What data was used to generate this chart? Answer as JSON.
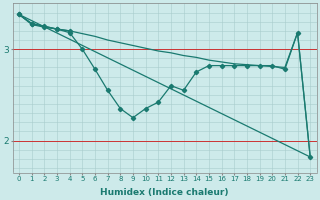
{
  "bg_color": "#cdeaea",
  "line_color": "#1a7a70",
  "red_line_color": "#cc3333",
  "xlabel": "Humidex (Indice chaleur)",
  "xmin": -0.5,
  "xmax": 23.5,
  "ymin": 1.65,
  "ymax": 3.5,
  "red_hlines": [
    2.0,
    3.0
  ],
  "series": [
    {
      "x": [
        0,
        23
      ],
      "y": [
        3.38,
        1.82
      ],
      "has_markers": false
    },
    {
      "x": [
        0,
        1,
        2,
        3,
        4,
        5,
        6,
        7,
        8,
        9,
        10,
        11,
        12,
        13,
        14,
        15,
        16,
        17,
        18,
        19,
        20,
        21,
        22,
        23
      ],
      "y": [
        3.38,
        3.28,
        3.25,
        3.22,
        3.2,
        3.17,
        3.14,
        3.1,
        3.07,
        3.04,
        3.01,
        2.98,
        2.96,
        2.93,
        2.91,
        2.88,
        2.86,
        2.84,
        2.83,
        2.82,
        2.81,
        2.8,
        3.18,
        1.82
      ],
      "has_markers": false
    },
    {
      "x": [
        0,
        1,
        2,
        3,
        4,
        5,
        6,
        7,
        8,
        9,
        10,
        11,
        12,
        13,
        14,
        15,
        16,
        17,
        18,
        19,
        20,
        21,
        22,
        23
      ],
      "y": [
        3.38,
        3.27,
        3.24,
        3.22,
        3.18,
        3.0,
        2.78,
        2.55,
        2.35,
        2.25,
        2.35,
        2.42,
        2.6,
        2.55,
        2.75,
        2.82,
        2.82,
        2.82,
        2.82,
        2.82,
        2.82,
        2.78,
        3.18,
        1.82
      ],
      "has_markers": true
    },
    {
      "x": [
        0,
        1,
        2,
        3,
        4
      ],
      "y": [
        3.38,
        3.28,
        3.25,
        3.22,
        3.2
      ],
      "has_markers": true
    }
  ],
  "marker": "D",
  "markersize": 2.2,
  "linewidth": 0.9,
  "tick_fontsize": 5.0,
  "xlabel_fontsize": 6.5
}
